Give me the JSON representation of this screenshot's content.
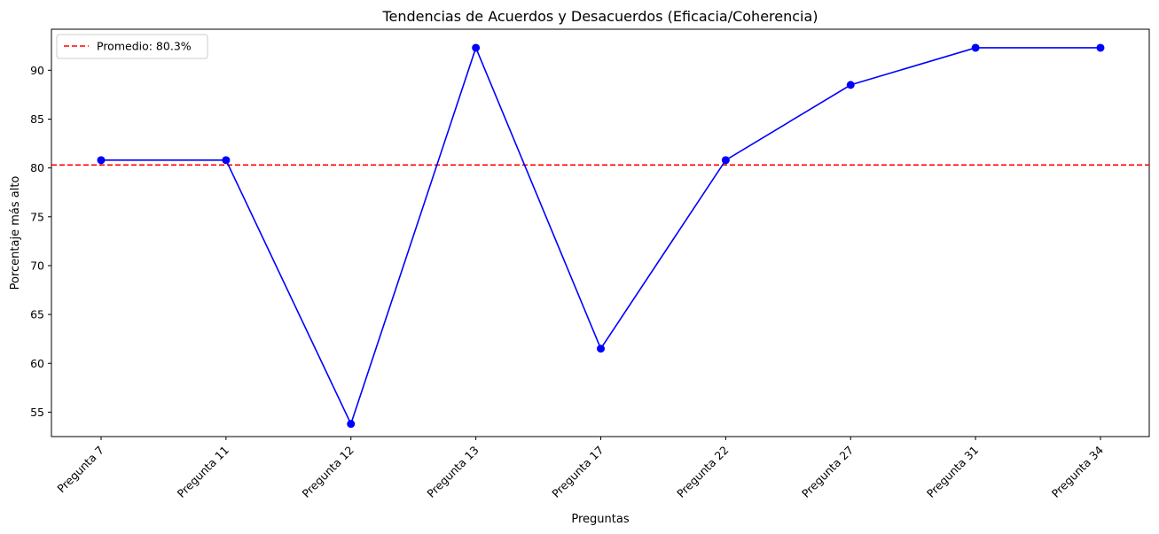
{
  "chart_data": {
    "type": "line",
    "title": "Tendencias de Acuerdos y Desacuerdos (Eficacia/Coherencia)",
    "xlabel": "Preguntas",
    "ylabel": "Porcentaje más alto",
    "categories": [
      "Pregunta 7",
      "Pregunta 11",
      "Pregunta 12",
      "Pregunta 13",
      "Pregunta 17",
      "Pregunta 22",
      "Pregunta 27",
      "Pregunta 31",
      "Pregunta 34"
    ],
    "series": [
      {
        "values": [
          80.8,
          80.8,
          53.8,
          92.3,
          61.5,
          80.8,
          88.5,
          92.3,
          92.3
        ],
        "color": "#0000ff"
      }
    ],
    "reference_line": {
      "label": "Promedio: 80.3%",
      "value": 80.3,
      "color": "#ff0000",
      "style": "dashed"
    },
    "yticks": [
      55,
      60,
      65,
      70,
      75,
      80,
      85,
      90
    ],
    "ylim": [
      52.5,
      94.2
    ],
    "grid": false,
    "legend_position": "upper left"
  }
}
